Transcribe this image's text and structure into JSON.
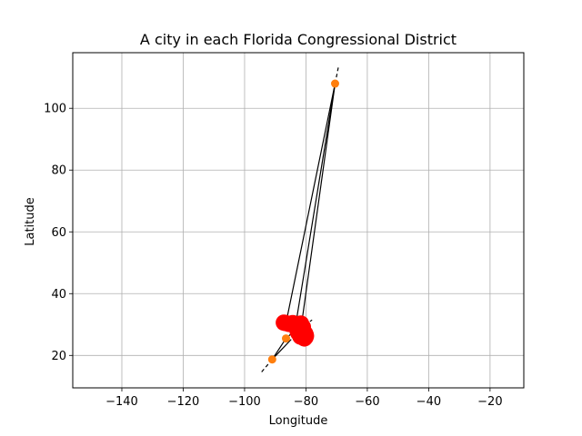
{
  "chart_data": {
    "type": "scatter",
    "title": "A city in each Florida Congressional District",
    "xlabel": "Longitude",
    "ylabel": "Latitude",
    "xlim": [
      -156,
      -9
    ],
    "ylim": [
      9.5,
      118
    ],
    "xticks": [
      -140,
      -120,
      -100,
      -80,
      -60,
      -40,
      -20
    ],
    "yticks": [
      20,
      40,
      60,
      80,
      100
    ],
    "grid": true,
    "colors": {
      "cities": "#ff0000",
      "extremes": "#ff7f0e",
      "lines": "#000000",
      "grid": "#b0b0b0"
    },
    "series": [
      {
        "kind": "markers",
        "points": [
          [
            -87.2,
            30.6
          ],
          [
            -86.7,
            30.5
          ],
          [
            -85.6,
            30.2
          ],
          [
            -84.3,
            30.45
          ],
          [
            -82.3,
            30.2
          ],
          [
            -81.6,
            30.3
          ],
          [
            -81.0,
            29.2
          ],
          [
            -82.3,
            29.6
          ],
          [
            -81.4,
            28.5
          ],
          [
            -81.3,
            28.6
          ],
          [
            -81.5,
            28.3
          ],
          [
            -82.0,
            28.0
          ],
          [
            -82.5,
            27.9
          ],
          [
            -82.7,
            27.8
          ],
          [
            -82.4,
            28.2
          ],
          [
            -81.9,
            27.0
          ],
          [
            -82.5,
            27.3
          ],
          [
            -80.3,
            27.2
          ],
          [
            -80.9,
            26.7
          ],
          [
            -80.1,
            26.7
          ],
          [
            -80.2,
            26.4
          ],
          [
            -80.1,
            26.1
          ],
          [
            -80.3,
            25.9
          ],
          [
            -80.2,
            25.8
          ],
          [
            -80.4,
            26.0
          ],
          [
            -80.5,
            25.5
          ],
          [
            -81.8,
            26.1
          ],
          [
            -80.0,
            26.3
          ]
        ]
      },
      {
        "kind": "orange_points",
        "points": [
          [
            -70.5,
            108.0
          ],
          [
            -86.5,
            25.5
          ],
          [
            -91.0,
            18.7
          ]
        ]
      },
      {
        "kind": "connections",
        "segments": [
          [
            [
              -70.5,
              108.0
            ],
            [
              -86.5,
              30.5
            ]
          ],
          [
            [
              -70.5,
              108.0
            ],
            [
              -83.5,
              29.0
            ]
          ],
          [
            [
              -70.5,
              108.0
            ],
            [
              -81.8,
              27.5
            ]
          ],
          [
            [
              -91.0,
              18.7
            ],
            [
              -86.5,
              25.5
            ]
          ],
          [
            [
              -91.0,
              18.7
            ],
            [
              -84.8,
              25.2
            ]
          ],
          [
            [
              -86.5,
              25.5
            ],
            [
              -82.0,
              29.5
            ]
          ],
          [
            [
              -80.5,
              27.5
            ],
            [
              -78.0,
              28.0
            ]
          ]
        ]
      },
      {
        "kind": "dashed_segments",
        "segments": [
          [
            [
              -70.5,
              108.0
            ],
            [
              -69.3,
              114.0
            ]
          ],
          [
            [
              -91.0,
              18.7
            ],
            [
              -95.0,
              14.0
            ]
          ],
          [
            [
              -82.0,
              28.5
            ],
            [
              -78.0,
              31.5
            ]
          ]
        ]
      }
    ]
  }
}
